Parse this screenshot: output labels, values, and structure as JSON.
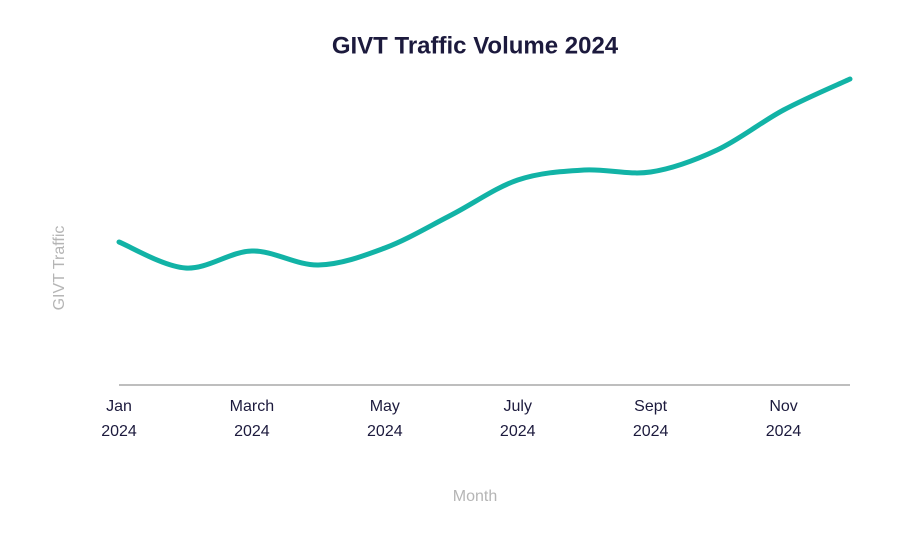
{
  "chart_data": {
    "type": "line",
    "title": "GIVT Traffic Volume 2024",
    "x_label": "Month",
    "y_label": "GIVT Traffic",
    "categories": [
      "Jan 2024",
      null,
      "March 2024",
      null,
      "May 2024",
      null,
      "July 2024",
      null,
      "Sept 2024",
      null,
      "Nov 2024",
      null
    ],
    "values": [
      143,
      117,
      134,
      120,
      137,
      170,
      205,
      215,
      213,
      235,
      275,
      306
    ],
    "color": "#12b3a6",
    "ylim": [
      0,
      318
    ]
  }
}
